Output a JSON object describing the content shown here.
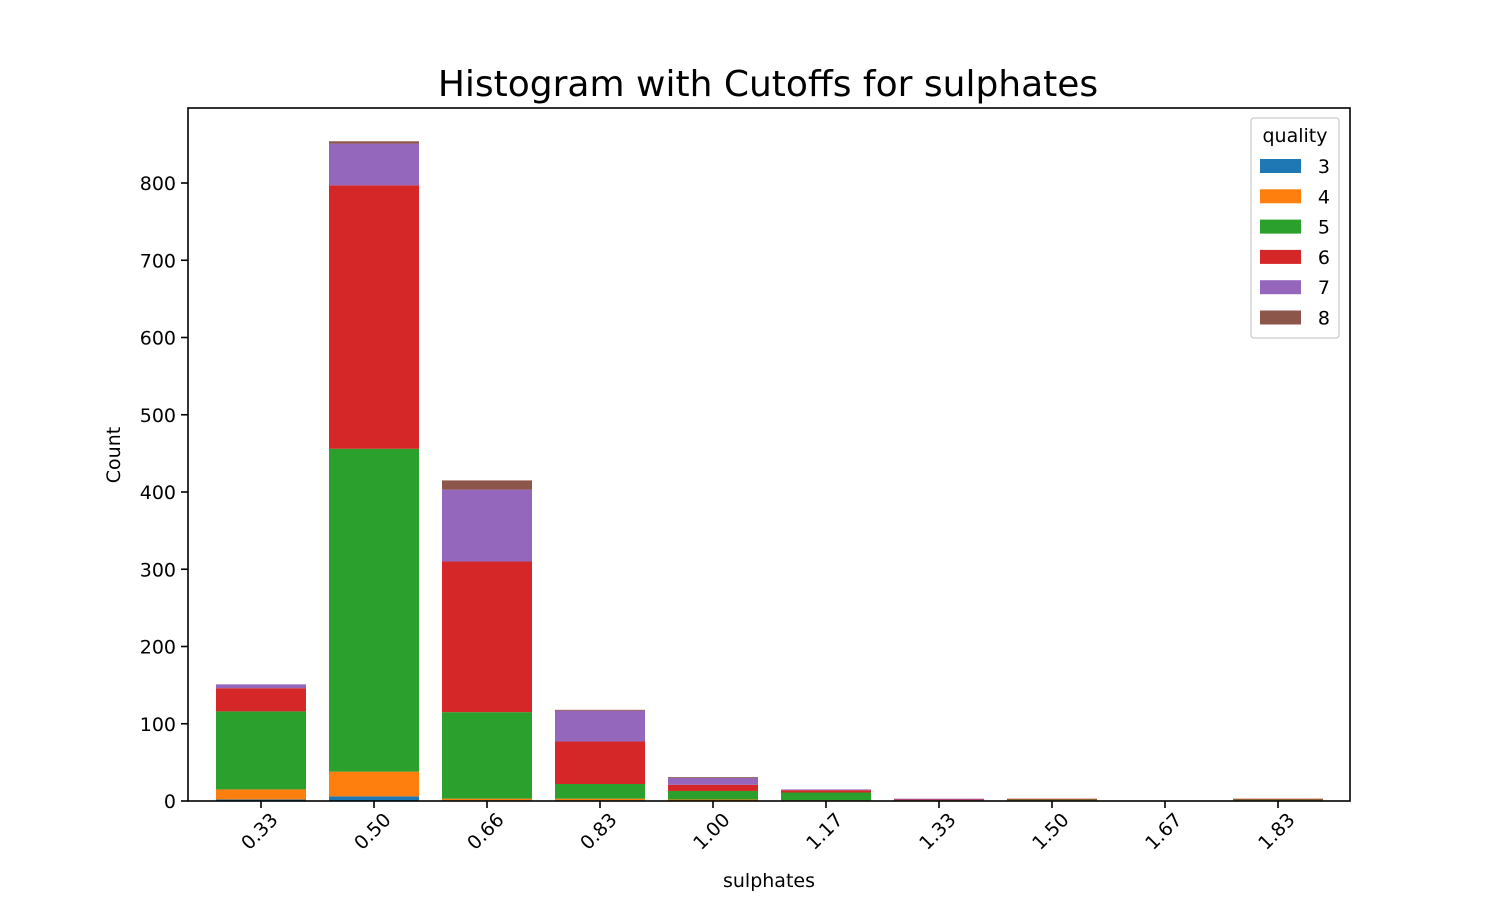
{
  "chart_data": {
    "type": "bar",
    "stacked": true,
    "title": "Histogram with Cutoffs for sulphates",
    "xlabel": "sulphates",
    "ylabel": "Count",
    "ylim": [
      0,
      890
    ],
    "yticks": [
      0,
      100,
      200,
      300,
      400,
      500,
      600,
      700,
      800
    ],
    "categories": [
      "0.33",
      "0.50",
      "0.66",
      "0.83",
      "1.00",
      "1.17",
      "1.33",
      "1.50",
      "1.67",
      "1.83"
    ],
    "series": [
      {
        "name": "3",
        "color": "#1f77b4",
        "values": [
          2,
          6,
          1,
          1,
          0,
          0,
          0,
          0,
          0,
          0
        ]
      },
      {
        "name": "4",
        "color": "#ff7f0e",
        "values": [
          13,
          32,
          2,
          2,
          2,
          1,
          0,
          1,
          0,
          1
        ]
      },
      {
        "name": "5",
        "color": "#2ca02c",
        "values": [
          101,
          418,
          112,
          19,
          11,
          10,
          1,
          1,
          0,
          1
        ]
      },
      {
        "name": "6",
        "color": "#d62728",
        "values": [
          30,
          341,
          195,
          55,
          8,
          3,
          1,
          1,
          0,
          1
        ]
      },
      {
        "name": "7",
        "color": "#9467bd",
        "values": [
          5,
          54,
          93,
          40,
          9,
          1,
          1,
          0,
          0,
          0
        ]
      },
      {
        "name": "8",
        "color": "#8c564b",
        "values": [
          0,
          3,
          12,
          1,
          1,
          0,
          0,
          0,
          0,
          0
        ]
      }
    ],
    "legend": {
      "title": "quality",
      "position": "top-right"
    },
    "grid": false
  }
}
